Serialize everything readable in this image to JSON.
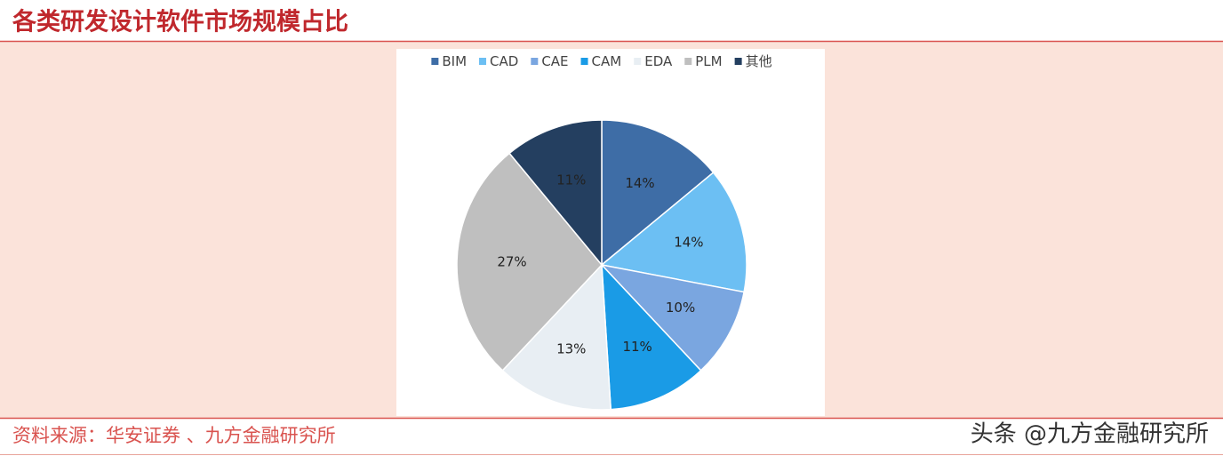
{
  "chart_data": {
    "type": "pie",
    "title": "各类研发设计软件市场规模占比",
    "categories": [
      "BIM",
      "CAD",
      "CAE",
      "CAM",
      "EDA",
      "PLM",
      "其他"
    ],
    "values": [
      14,
      14,
      10,
      11,
      13,
      27,
      11
    ],
    "value_labels": [
      "14%",
      "14%",
      "10%",
      "11%",
      "13%",
      "27%",
      "11%"
    ],
    "colors": [
      "#3e6da6",
      "#6cbff3",
      "#7aa6e0",
      "#1a9be6",
      "#e8eef3",
      "#bfbfbf",
      "#243f60"
    ],
    "legend": "top"
  },
  "footer": {
    "source": "资料来源：华安证券 、九方金融研究所",
    "watermark": "头条 @九方金融研究所"
  }
}
